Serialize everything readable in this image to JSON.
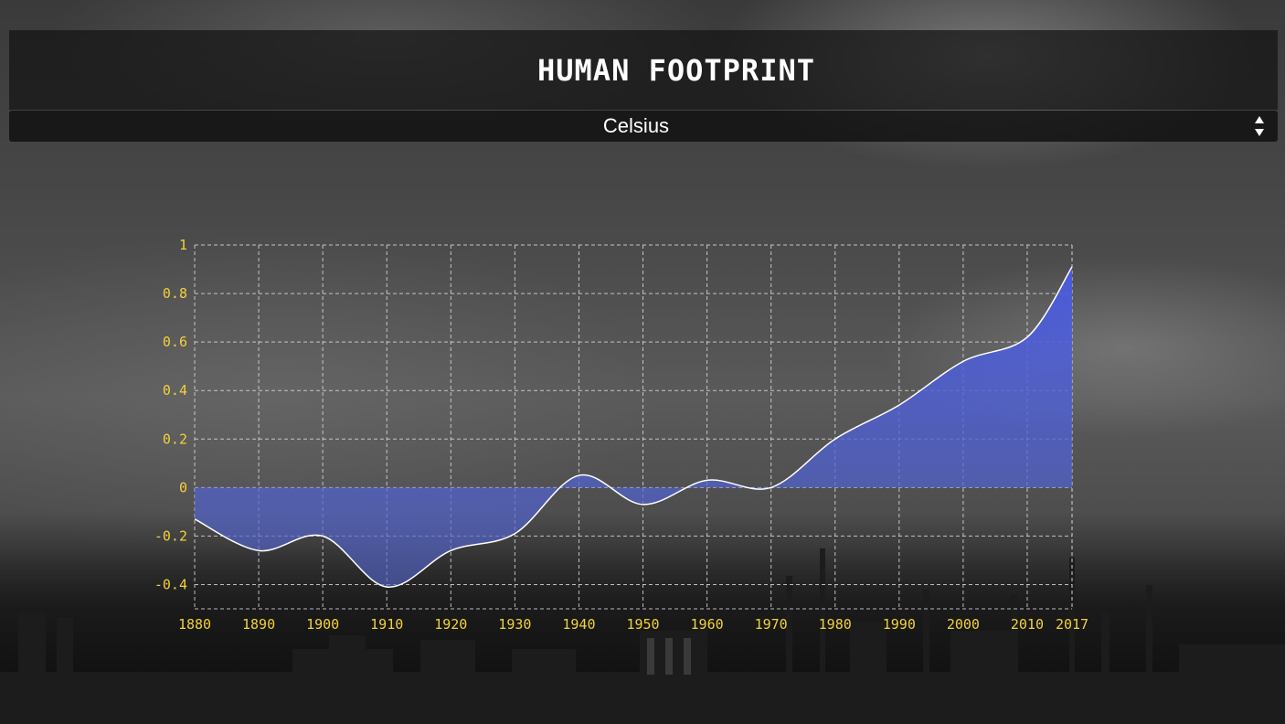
{
  "header": {
    "title": "HUMAN FOOTPRINT"
  },
  "unit_select": {
    "selected": "Celsius",
    "icon": "updown-arrows-icon"
  },
  "colors": {
    "tick_label": "#f3d13c",
    "area_fill": "#4a5bd6",
    "line": "#ffffff",
    "grid": "#d8d8d8"
  },
  "chart_data": {
    "type": "area",
    "title": "",
    "xlabel": "",
    "ylabel": "",
    "x_ticks": [
      "1880",
      "1890",
      "1900",
      "1910",
      "1920",
      "1930",
      "1940",
      "1950",
      "1960",
      "1970",
      "1980",
      "1990",
      "2000",
      "2010",
      "2017"
    ],
    "y_ticks": [
      "1",
      "0.8",
      "0.6",
      "0.4",
      "0.2",
      "0",
      "-0.2",
      "-0.4"
    ],
    "ylim": [
      -0.5,
      1
    ],
    "grid": true,
    "legend": "none",
    "series": [
      {
        "x": [
          1880,
          1890,
          1900,
          1910,
          1920,
          1930,
          1940,
          1950,
          1960,
          1970,
          1980,
          1990,
          2000,
          2010,
          2017
        ],
        "values": [
          -0.13,
          -0.26,
          -0.2,
          -0.41,
          -0.26,
          -0.19,
          0.05,
          -0.07,
          0.03,
          0.0,
          0.2,
          0.34,
          0.52,
          0.62,
          0.91
        ]
      }
    ]
  }
}
